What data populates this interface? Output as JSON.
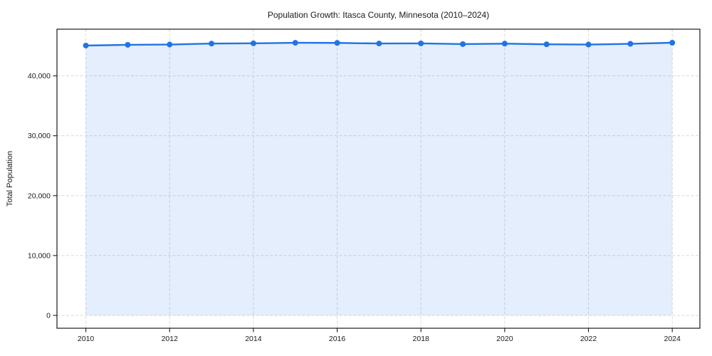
{
  "title": "Population Growth: Itasca County, Minnesota (2010–2024)",
  "colors": {
    "line": "#2173e6",
    "marker": "#2173e6",
    "area_fill": "#2173e6",
    "area_fill_opacity": 0.12,
    "grid": "#d9d9d9",
    "spine": "#1a1a1a",
    "text": "#1a1a1a",
    "background": "#ffffff"
  },
  "chart_data": {
    "type": "line",
    "area_fill_to_zero": true,
    "title": "Population Growth: Itasca County, Minnesota (2010–2024)",
    "xlabel": "",
    "ylabel": "Total Population",
    "series": [
      {
        "name": "Total Population",
        "x": [
          2010,
          2011,
          2012,
          2013,
          2014,
          2015,
          2016,
          2017,
          2018,
          2019,
          2020,
          2021,
          2022,
          2023,
          2024
        ],
        "values": [
          45058,
          45180,
          45230,
          45390,
          45430,
          45520,
          45500,
          45400,
          45420,
          45300,
          45380,
          45270,
          45230,
          45350,
          45530
        ]
      }
    ],
    "xticks": [
      2010,
      2012,
      2014,
      2016,
      2018,
      2020,
      2022,
      2024
    ],
    "x_tick_labels": [
      "2010",
      "2012",
      "2014",
      "2016",
      "2018",
      "2020",
      "2022",
      "2024"
    ],
    "yticks": [
      0,
      10000,
      20000,
      30000,
      40000
    ],
    "y_tick_labels": [
      "0",
      "10,000",
      "20,000",
      "30,000",
      "40,000"
    ],
    "xlim": [
      2009.31,
      2024.66
    ],
    "ylim": [
      -2140,
      47790
    ],
    "grid": "dashed-both",
    "legend": "none",
    "marker": "circle"
  }
}
